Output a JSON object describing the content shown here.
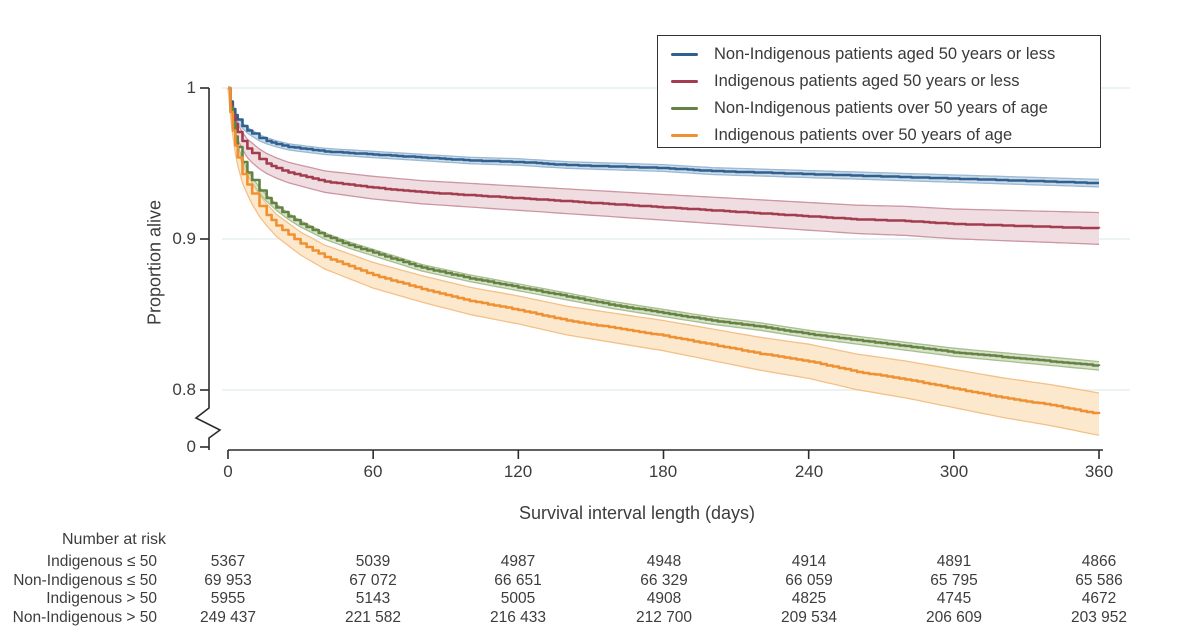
{
  "chart_data": {
    "type": "line",
    "subtype": "kaplan-meier-survival",
    "title": "",
    "xlabel": "Survival interval length (days)",
    "ylabel": "Proportion alive",
    "xlim": [
      0,
      360
    ],
    "x_ticks": [
      0,
      60,
      120,
      180,
      240,
      300,
      360
    ],
    "y_ticks": [
      "1",
      "0.9",
      "0.8",
      "0"
    ],
    "y_axis_break": true,
    "grid": "horizontal",
    "grid_color": "#e6eff1",
    "axis_color": "#2c2c2c",
    "legend_position": "top-right",
    "series": [
      {
        "name": "Non-Indigenous patients aged 50 years or less",
        "color": "#2f6090",
        "band_fill": "#ccdce9",
        "band_edge": "#9cb9d3",
        "points": [
          [
            0,
            1
          ],
          [
            1,
            0.991
          ],
          [
            2,
            0.986
          ],
          [
            3,
            0.982
          ],
          [
            4,
            0.979
          ],
          [
            6,
            0.975
          ],
          [
            8,
            0.972
          ],
          [
            10,
            0.97
          ],
          [
            13,
            0.967
          ],
          [
            16,
            0.965
          ],
          [
            20,
            0.963
          ],
          [
            25,
            0.961
          ],
          [
            30,
            0.96
          ],
          [
            40,
            0.958
          ],
          [
            50,
            0.957
          ],
          [
            60,
            0.956
          ],
          [
            80,
            0.954
          ],
          [
            100,
            0.952
          ],
          [
            120,
            0.951
          ],
          [
            140,
            0.949
          ],
          [
            160,
            0.948
          ],
          [
            180,
            0.947
          ],
          [
            200,
            0.945
          ],
          [
            220,
            0.944
          ],
          [
            240,
            0.943
          ],
          [
            260,
            0.942
          ],
          [
            280,
            0.941
          ],
          [
            300,
            0.94
          ],
          [
            320,
            0.939
          ],
          [
            340,
            0.938
          ],
          [
            360,
            0.937
          ]
        ],
        "ci_halfwidth": [
          [
            0,
            0
          ],
          [
            3,
            0.0015
          ],
          [
            10,
            0.002
          ],
          [
            360,
            0.0025
          ]
        ]
      },
      {
        "name": "Indigenous patients aged 50 years or less",
        "color": "#a23c4e",
        "band_fill": "#f0dde1",
        "band_edge": "#cc96a2",
        "points": [
          [
            0,
            1
          ],
          [
            1,
            0.989
          ],
          [
            2,
            0.982
          ],
          [
            3,
            0.976
          ],
          [
            4,
            0.971
          ],
          [
            6,
            0.965
          ],
          [
            8,
            0.96
          ],
          [
            10,
            0.957
          ],
          [
            13,
            0.953
          ],
          [
            16,
            0.95
          ],
          [
            20,
            0.947
          ],
          [
            25,
            0.944
          ],
          [
            30,
            0.942
          ],
          [
            40,
            0.938
          ],
          [
            50,
            0.936
          ],
          [
            60,
            0.934
          ],
          [
            80,
            0.931
          ],
          [
            100,
            0.929
          ],
          [
            120,
            0.927
          ],
          [
            140,
            0.925
          ],
          [
            160,
            0.923
          ],
          [
            180,
            0.921
          ],
          [
            200,
            0.919
          ],
          [
            220,
            0.917
          ],
          [
            240,
            0.915
          ],
          [
            260,
            0.913
          ],
          [
            280,
            0.912
          ],
          [
            300,
            0.91
          ],
          [
            320,
            0.909
          ],
          [
            340,
            0.908
          ],
          [
            360,
            0.907
          ]
        ],
        "ci_halfwidth": [
          [
            0,
            0
          ],
          [
            3,
            0.005
          ],
          [
            10,
            0.0065
          ],
          [
            60,
            0.0075
          ],
          [
            180,
            0.0085
          ],
          [
            360,
            0.0105
          ]
        ]
      },
      {
        "name": "Non-Indigenous patients over 50 years of age",
        "color": "#648244",
        "band_fill": "#d9e3cb",
        "band_edge": "#a7bf8c",
        "points": [
          [
            0,
            1
          ],
          [
            1,
            0.987
          ],
          [
            2,
            0.977
          ],
          [
            3,
            0.968
          ],
          [
            4,
            0.961
          ],
          [
            6,
            0.951
          ],
          [
            8,
            0.944
          ],
          [
            10,
            0.939
          ],
          [
            13,
            0.932
          ],
          [
            16,
            0.927
          ],
          [
            20,
            0.921
          ],
          [
            25,
            0.915
          ],
          [
            30,
            0.91
          ],
          [
            40,
            0.902
          ],
          [
            50,
            0.896
          ],
          [
            60,
            0.891
          ],
          [
            80,
            0.881
          ],
          [
            100,
            0.874
          ],
          [
            120,
            0.868
          ],
          [
            140,
            0.862
          ],
          [
            160,
            0.856
          ],
          [
            180,
            0.851
          ],
          [
            200,
            0.846
          ],
          [
            220,
            0.842
          ],
          [
            240,
            0.837
          ],
          [
            260,
            0.833
          ],
          [
            280,
            0.829
          ],
          [
            300,
            0.825
          ],
          [
            320,
            0.822
          ],
          [
            340,
            0.819
          ],
          [
            360,
            0.816
          ]
        ],
        "ci_halfwidth": [
          [
            0,
            0
          ],
          [
            3,
            0.0015
          ],
          [
            10,
            0.002
          ],
          [
            360,
            0.0028
          ]
        ]
      },
      {
        "name": "Indigenous patients over 50 years of age",
        "color": "#ef9133",
        "band_fill": "#fce9cd",
        "band_edge": "#f5c088",
        "points": [
          [
            0,
            1
          ],
          [
            1,
            0.984
          ],
          [
            2,
            0.972
          ],
          [
            3,
            0.962
          ],
          [
            4,
            0.954
          ],
          [
            6,
            0.943
          ],
          [
            8,
            0.936
          ],
          [
            10,
            0.93
          ],
          [
            13,
            0.922
          ],
          [
            16,
            0.916
          ],
          [
            20,
            0.909
          ],
          [
            25,
            0.903
          ],
          [
            30,
            0.897
          ],
          [
            40,
            0.888
          ],
          [
            50,
            0.882
          ],
          [
            60,
            0.876
          ],
          [
            80,
            0.867
          ],
          [
            100,
            0.859
          ],
          [
            120,
            0.853
          ],
          [
            140,
            0.846
          ],
          [
            160,
            0.841
          ],
          [
            180,
            0.836
          ],
          [
            200,
            0.83
          ],
          [
            220,
            0.824
          ],
          [
            240,
            0.819
          ],
          [
            260,
            0.812
          ],
          [
            280,
            0.807
          ],
          [
            300,
            0.801
          ],
          [
            320,
            0.795
          ],
          [
            340,
            0.79
          ],
          [
            360,
            0.784
          ]
        ],
        "ci_halfwidth": [
          [
            0,
            0
          ],
          [
            3,
            0.005
          ],
          [
            10,
            0.007
          ],
          [
            60,
            0.0085
          ],
          [
            180,
            0.01
          ],
          [
            360,
            0.014
          ]
        ]
      }
    ]
  },
  "risk_table": {
    "title": "Number at risk",
    "rows": [
      {
        "label": "Indigenous ≤ 50",
        "values": [
          "5367",
          "5039",
          "4987",
          "4948",
          "4914",
          "4891",
          "4866"
        ]
      },
      {
        "label": "Non-Indigenous ≤ 50",
        "values": [
          "69 953",
          "67 072",
          "66 651",
          "66 329",
          "66 059",
          "65 795",
          "65 586"
        ]
      },
      {
        "label": "Indigenous > 50",
        "values": [
          "5955",
          "5143",
          "5005",
          "4908",
          "4825",
          "4745",
          "4672"
        ]
      },
      {
        "label": "Non-Indigenous > 50",
        "values": [
          "249 437",
          "221 582",
          "216 433",
          "212 700",
          "209 534",
          "206 609",
          "203 952"
        ]
      }
    ]
  }
}
